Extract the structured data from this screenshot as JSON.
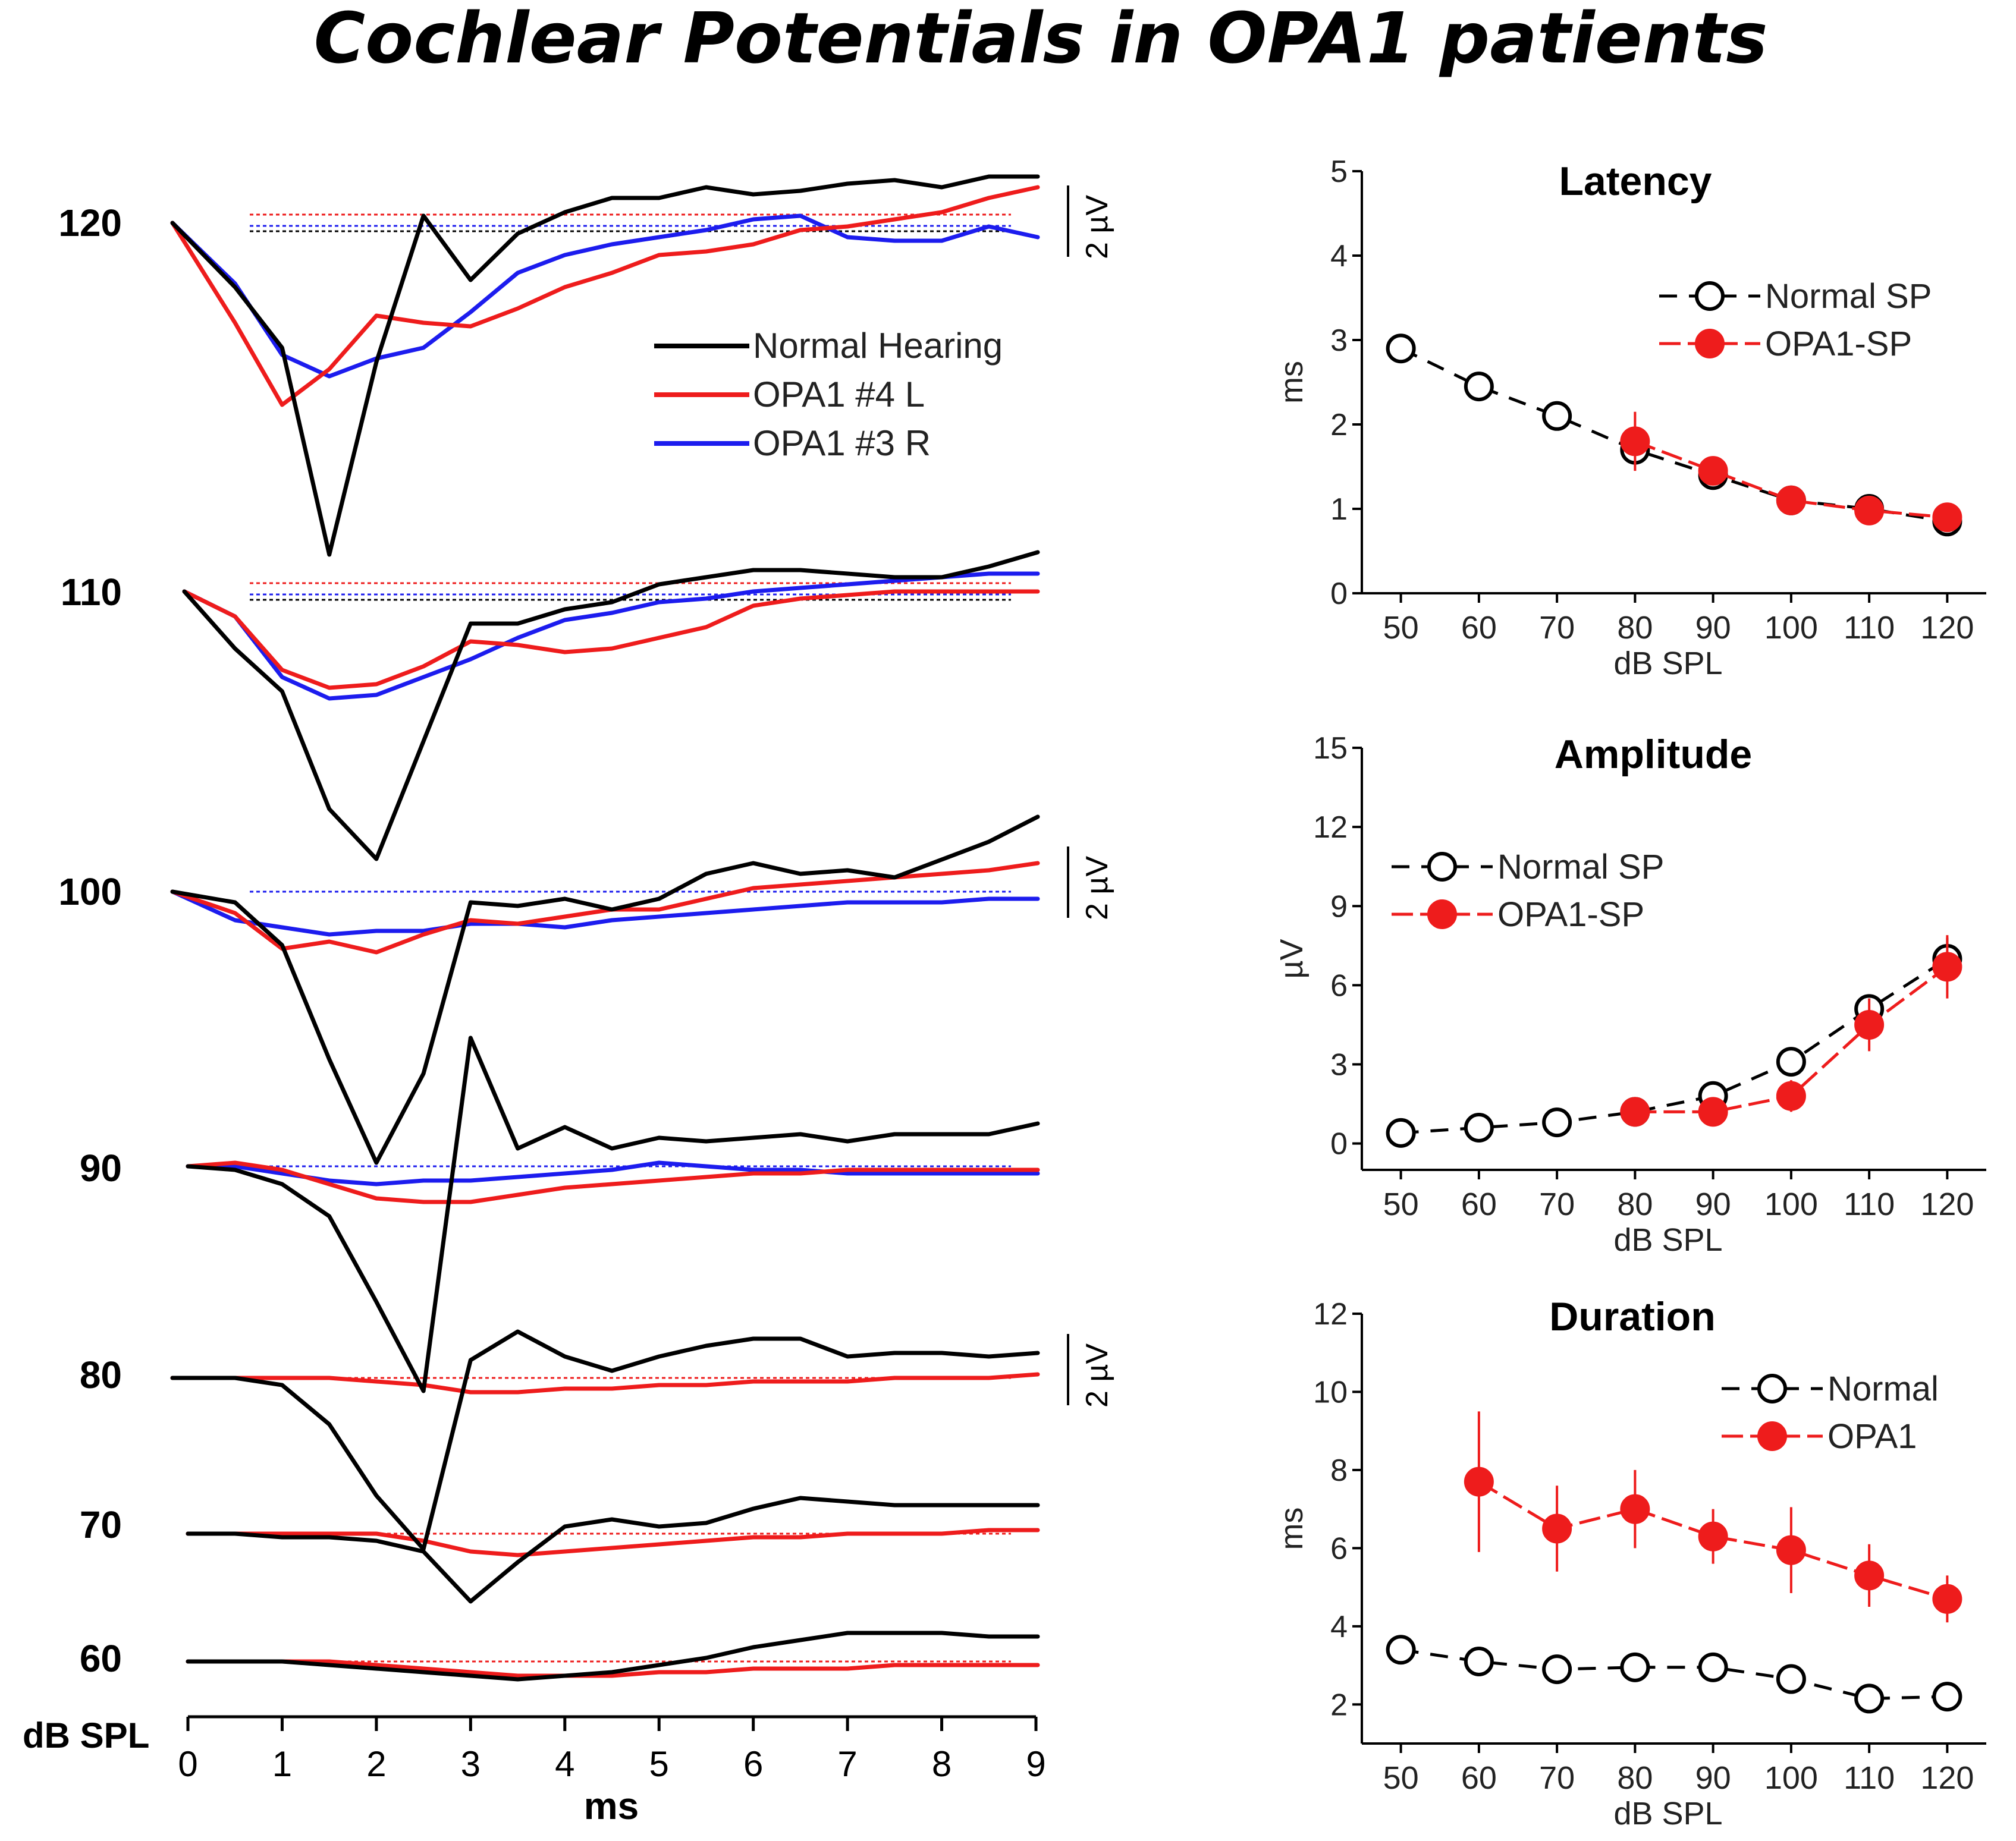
{
  "title": "Cochlear Potentials in OPA1 patients",
  "waveform_panel": {
    "level_labels": [
      "120",
      "110",
      "100",
      "90",
      "80",
      "70",
      "60"
    ],
    "level_axis_label": "dB SPL",
    "xlabel": "ms",
    "x_ticks": [
      "0",
      "1",
      "2",
      "3",
      "4",
      "5",
      "6",
      "7",
      "8",
      "9"
    ],
    "scale_bar_label": "2 µV",
    "legend": [
      {
        "name": "Normal Hearing",
        "color": "#000000"
      },
      {
        "name": "OPA1 #4 L",
        "color": "#ee1c1c"
      },
      {
        "name": "OPA1 #3 R",
        "color": "#1c1cee"
      }
    ]
  },
  "chart_data": [
    {
      "type": "line",
      "title": "Cochlear Potentials in OPA1 patients",
      "xlabel": "ms",
      "ylabel": "dB SPL",
      "xlim": [
        0,
        9
      ],
      "levels": [
        120,
        110,
        100,
        90,
        80,
        70,
        60
      ],
      "time": [
        0,
        0.5,
        1,
        1.5,
        2,
        2.5,
        3,
        3.5,
        4,
        4.5,
        5,
        5.5,
        6,
        6.5,
        7,
        7.5,
        8,
        8.5,
        9
      ],
      "unit": "µV",
      "series": [
        {
          "name": "Normal Hearing",
          "color": "#000000",
          "waveforms": [
            {
              "level": 120,
              "values": [
                0,
                -1.8,
                -3.5,
                -9.3,
                -3.9,
                0.2,
                -1.6,
                -0.3,
                0.3,
                0.7,
                0.7,
                1,
                0.8,
                0.9,
                1.1,
                1.2,
                1,
                1.3,
                1.3
              ]
            },
            {
              "level": 110,
              "values": [
                0,
                -1.6,
                -2.8,
                -6.1,
                -7.5,
                -4.2,
                -0.9,
                -0.9,
                -0.5,
                -0.3,
                0.2,
                0.4,
                0.6,
                0.6,
                0.5,
                0.4,
                0.4,
                0.7,
                1.1
              ]
            },
            {
              "level": 100,
              "values": [
                0,
                -0.3,
                -1.5,
                -4.7,
                -7.6,
                -5.1,
                -0.3,
                -0.4,
                -0.2,
                -0.5,
                -0.2,
                0.5,
                0.8,
                0.5,
                0.6,
                0.4,
                0.9,
                1.4,
                2.1
              ]
            },
            {
              "level": 90,
              "values": [
                0,
                -0.1,
                -0.5,
                -1.4,
                -3.8,
                -6.3,
                3.6,
                0.5,
                1.1,
                0.5,
                0.8,
                0.7,
                0.8,
                0.9,
                0.7,
                0.9,
                0.9,
                0.9,
                1.2
              ]
            },
            {
              "level": 80,
              "values": [
                0,
                0,
                -0.2,
                -1.3,
                -3.3,
                -4.8,
                0.5,
                1.3,
                0.6,
                0.2,
                0.6,
                0.9,
                1.1,
                1.1,
                0.6,
                0.7,
                0.7,
                0.6,
                0.7
              ]
            },
            {
              "level": 70,
              "values": [
                0,
                0,
                -0.1,
                -0.1,
                -0.2,
                -0.5,
                -1.9,
                -0.8,
                0.2,
                0.4,
                0.2,
                0.3,
                0.7,
                1,
                0.9,
                0.8,
                0.8,
                0.8,
                0.8
              ]
            },
            {
              "level": 60,
              "values": [
                0,
                0,
                0,
                -0.1,
                -0.2,
                -0.3,
                -0.4,
                -0.5,
                -0.4,
                -0.3,
                -0.1,
                0.1,
                0.4,
                0.6,
                0.8,
                0.8,
                0.8,
                0.7,
                0.7
              ]
            }
          ]
        },
        {
          "name": "OPA1 #4 L",
          "color": "#ee1c1c",
          "waveforms": [
            {
              "level": 120,
              "values": [
                0,
                -2.8,
                -5.1,
                -4.1,
                -2.6,
                -2.8,
                -2.9,
                -2.4,
                -1.8,
                -1.4,
                -0.9,
                -0.8,
                -0.6,
                -0.2,
                -0.1,
                0.1,
                0.3,
                0.7,
                1
              ]
            },
            {
              "level": 110,
              "values": [
                0,
                -0.7,
                -2.2,
                -2.7,
                -2.6,
                -2.1,
                -1.4,
                -1.5,
                -1.7,
                -1.6,
                -1.3,
                -1,
                -0.4,
                -0.2,
                -0.1,
                0,
                0,
                0,
                0
              ]
            },
            {
              "level": 100,
              "values": [
                0,
                -0.6,
                -1.6,
                -1.4,
                -1.7,
                -1.2,
                -0.8,
                -0.9,
                -0.7,
                -0.5,
                -0.5,
                -0.2,
                0.1,
                0.2,
                0.3,
                0.4,
                0.5,
                0.6,
                0.8
              ]
            },
            {
              "level": 90,
              "values": [
                0,
                0.1,
                -0.1,
                -0.5,
                -0.9,
                -1,
                -1,
                -0.8,
                -0.6,
                -0.5,
                -0.4,
                -0.3,
                -0.2,
                -0.2,
                -0.1,
                -0.1,
                -0.1,
                -0.1,
                -0.1
              ]
            },
            {
              "level": 80,
              "values": [
                0,
                0,
                0,
                0,
                -0.1,
                -0.2,
                -0.4,
                -0.4,
                -0.3,
                -0.3,
                -0.2,
                -0.2,
                -0.1,
                -0.1,
                -0.1,
                0,
                0,
                0,
                0.1
              ]
            },
            {
              "level": 70,
              "values": [
                0,
                0,
                0,
                0,
                0,
                -0.2,
                -0.5,
                -0.6,
                -0.5,
                -0.4,
                -0.3,
                -0.2,
                -0.1,
                -0.1,
                0,
                0,
                0,
                0.1,
                0.1
              ]
            },
            {
              "level": 60,
              "values": [
                0,
                0,
                0,
                0,
                -0.1,
                -0.2,
                -0.3,
                -0.4,
                -0.4,
                -0.4,
                -0.3,
                -0.3,
                -0.2,
                -0.2,
                -0.2,
                -0.1,
                -0.1,
                -0.1,
                -0.1
              ]
            }
          ]
        },
        {
          "name": "OPA1 #3 R",
          "color": "#1c1cee",
          "waveforms": [
            {
              "level": 120,
              "values": [
                0,
                -1.7,
                -3.7,
                -4.3,
                -3.8,
                -3.5,
                -2.5,
                -1.4,
                -0.9,
                -0.6,
                -0.4,
                -0.2,
                0.1,
                0.2,
                -0.4,
                -0.5,
                -0.5,
                -0.1,
                -0.4
              ]
            },
            {
              "level": 110,
              "values": [
                0,
                -0.7,
                -2.4,
                -3,
                -2.9,
                -2.4,
                -1.9,
                -1.3,
                -0.8,
                -0.6,
                -0.3,
                -0.2,
                0,
                0.1,
                0.2,
                0.3,
                0.4,
                0.5,
                0.5
              ]
            },
            {
              "level": 100,
              "values": [
                0,
                -0.8,
                -1,
                -1.2,
                -1.1,
                -1.1,
                -0.9,
                -0.9,
                -1,
                -0.8,
                -0.7,
                -0.6,
                -0.5,
                -0.4,
                -0.3,
                -0.3,
                -0.3,
                -0.2,
                -0.2
              ]
            },
            {
              "level": 90,
              "values": [
                0,
                0,
                -0.2,
                -0.4,
                -0.5,
                -0.4,
                -0.4,
                -0.3,
                -0.2,
                -0.1,
                0.1,
                0,
                -0.1,
                -0.1,
                -0.2,
                -0.2,
                -0.2,
                -0.2,
                -0.2
              ]
            }
          ]
        }
      ]
    },
    {
      "type": "line",
      "title": "Latency",
      "xlabel": "dB SPL",
      "ylabel": "ms",
      "x": [
        50,
        60,
        70,
        80,
        90,
        100,
        110,
        120
      ],
      "ylim": [
        0,
        5
      ],
      "yticks": [
        "0",
        "1",
        "2",
        "3",
        "4",
        "5"
      ],
      "series": [
        {
          "name": "Normal SP",
          "values": [
            2.9,
            2.45,
            2.1,
            1.7,
            1.4,
            1.1,
            1.0,
            0.85
          ],
          "errors": [
            0,
            0,
            0,
            0,
            0,
            0,
            0,
            0
          ]
        },
        {
          "name": "OPA1-SP",
          "values": [
            null,
            null,
            null,
            1.8,
            1.45,
            1.1,
            0.98,
            0.9
          ],
          "errors": [
            0,
            0,
            0,
            0.35,
            0.1,
            0.1,
            0.08,
            0.1
          ]
        }
      ]
    },
    {
      "type": "line",
      "title": "Amplitude",
      "xlabel": "dB SPL",
      "ylabel": "µV",
      "x": [
        50,
        60,
        70,
        80,
        90,
        100,
        110,
        120
      ],
      "ylim": [
        -1,
        15
      ],
      "yticks": [
        "0",
        "3",
        "6",
        "9",
        "12",
        "15"
      ],
      "series": [
        {
          "name": "Normal SP",
          "values": [
            0.4,
            0.6,
            0.8,
            1.2,
            1.8,
            3.1,
            5.1,
            7.0
          ],
          "errors": [
            0.3,
            0.3,
            0.3,
            0.3,
            0.5,
            0.5,
            0.5,
            0.8
          ]
        },
        {
          "name": "OPA1-SP",
          "values": [
            null,
            null,
            null,
            1.2,
            1.2,
            1.8,
            4.5,
            6.7
          ],
          "errors": [
            0,
            0,
            0,
            0.4,
            0.4,
            0.6,
            1.0,
            1.2
          ]
        }
      ]
    },
    {
      "type": "line",
      "title": "Duration",
      "xlabel": "dB SPL",
      "ylabel": "ms",
      "x": [
        50,
        60,
        70,
        80,
        90,
        100,
        110,
        120
      ],
      "ylim": [
        1,
        12
      ],
      "yticks": [
        "2",
        "4",
        "6",
        "8",
        "10",
        "12"
      ],
      "series": [
        {
          "name": "Normal",
          "values": [
            3.4,
            3.1,
            2.9,
            2.95,
            2.95,
            2.65,
            2.15,
            2.2
          ],
          "errors": [
            0.2,
            0.2,
            0.2,
            0.2,
            0.2,
            0.2,
            0.2,
            0.2
          ]
        },
        {
          "name": "OPA1",
          "values": [
            null,
            7.7,
            6.5,
            7.0,
            6.3,
            5.95,
            5.3,
            4.7
          ],
          "errors": [
            0,
            1.8,
            1.1,
            1.0,
            0.7,
            1.1,
            0.8,
            0.6
          ]
        }
      ]
    }
  ]
}
